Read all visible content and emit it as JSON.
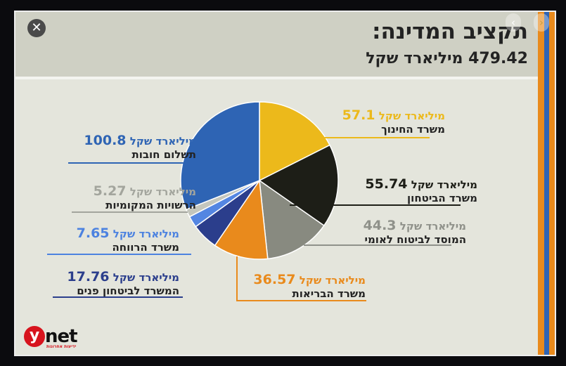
{
  "header": {
    "title": "תקציב המדינה:",
    "subtitle": "479.42 מיליארד שקל"
  },
  "controls": {
    "close": "✕",
    "prev": "‹",
    "next": "›"
  },
  "logo": {
    "y": "y",
    "net": "net",
    "tagline": "ידיעות אחרונות"
  },
  "colors": {
    "stripe_orange": "#e98a1c",
    "stripe_blue": "#2f64b4"
  },
  "chart_data": {
    "type": "pie",
    "unit": "מיליארד שקל",
    "total": 479.42,
    "slices": [
      {
        "label": "משרד החינוך",
        "value": 57.1,
        "display": "57.1",
        "color": "#ecb91b",
        "text_color": "#ecb91b"
      },
      {
        "label": "משרד הביטחון",
        "value": 55.74,
        "display": "55.74",
        "color": "#1d1e17",
        "text_color": "#1d1e17"
      },
      {
        "label": "המוסד לביטוח לאומי",
        "value": 44.3,
        "display": "44.3",
        "color": "#888a80",
        "text_color": "#8f918a"
      },
      {
        "label": "משרד הבריאות",
        "value": 36.57,
        "display": "36.57",
        "color": "#e98a1c",
        "text_color": "#e98a1c"
      },
      {
        "label": "המשרד לביטחון פנים",
        "value": 17.76,
        "display": "17.76",
        "color": "#2b3e8c",
        "text_color": "#2b3e8c"
      },
      {
        "label": "משרד הרווחה",
        "value": 7.65,
        "display": "7.65",
        "color": "#5486e2",
        "text_color": "#4c82e0"
      },
      {
        "label": "הרשויות המקומיות",
        "value": 5.27,
        "display": "5.27",
        "color": "#c4c6bd",
        "text_color": "#a3a59d"
      },
      {
        "label": "תשלום חובות",
        "value": 100.8,
        "display": "100.8",
        "color": "#2e64b4",
        "text_color": "#2e64b4"
      }
    ]
  }
}
